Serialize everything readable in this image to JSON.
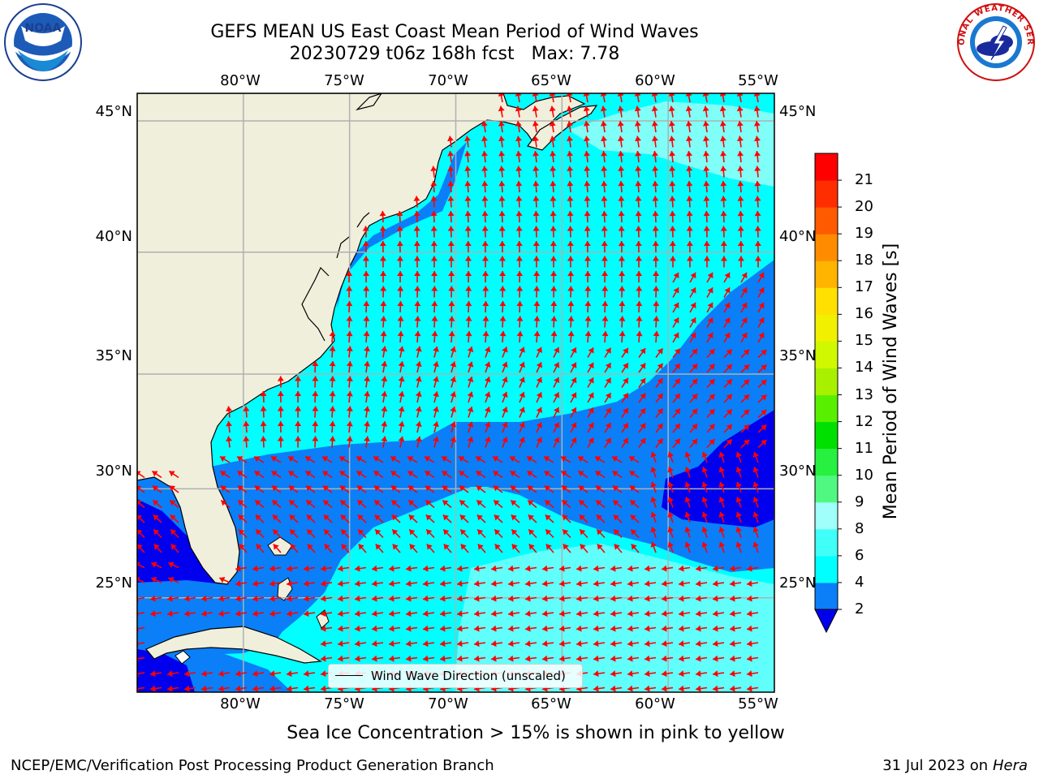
{
  "title": {
    "line1": "GEFS MEAN US East Coast Mean Period of Wind Waves",
    "line2": "20230729 t06z 168h fcst   Max: 7.78"
  },
  "map": {
    "lon_ticks": [
      "80°W",
      "75°W",
      "70°W",
      "65°W",
      "60°W",
      "55°W"
    ],
    "lat_ticks": [
      "45°N",
      "40°N",
      "35°N",
      "30°N",
      "25°N"
    ],
    "lon_range": [
      -85,
      -55
    ],
    "lat_range": [
      20.5,
      46
    ],
    "colors": {
      "land": "#efefdc",
      "grid": "#b0b0b0",
      "arrow": "#ff0000",
      "coast": "#000000",
      "band_2_4": "#0a7ff8",
      "band_4_6": "#00ffff",
      "band_6_8": "#7ffff8",
      "below_2": "#0000ee"
    },
    "legend_label": "Wind Wave Direction (unscaled)",
    "arrow_style": "red vectors"
  },
  "colorbar": {
    "label": "Mean Period of Wind Waves [s]",
    "ticks": [
      "2",
      "4",
      "6",
      "8",
      "9",
      "10",
      "11",
      "12",
      "13",
      "14",
      "15",
      "16",
      "17",
      "18",
      "19",
      "20",
      "21"
    ],
    "bands": [
      "#0a7ff8",
      "#00ffff",
      "#40fff8",
      "#a0fffa",
      "#50f882",
      "#28f040",
      "#00e000",
      "#58f000",
      "#a8f000",
      "#d0f800",
      "#f0f000",
      "#ffe000",
      "#ffb400",
      "#ff8c00",
      "#ff5a00",
      "#ff2d00",
      "#ff0000"
    ],
    "extend_color": "#0000ee"
  },
  "subtitle": "Sea Ice Concentration > 15% is shown in pink to yellow",
  "footer": {
    "left": "NCEP/EMC/Verification Post Processing Product Generation Branch",
    "right_prefix": "31 Jul 2023 on ",
    "right_host": "Hera"
  },
  "logos": {
    "left": "noaa-logo",
    "left_text": "NOAA",
    "right": "national-weather-service-logo",
    "right_text": "NATIONAL WEATHER SERVICE"
  }
}
